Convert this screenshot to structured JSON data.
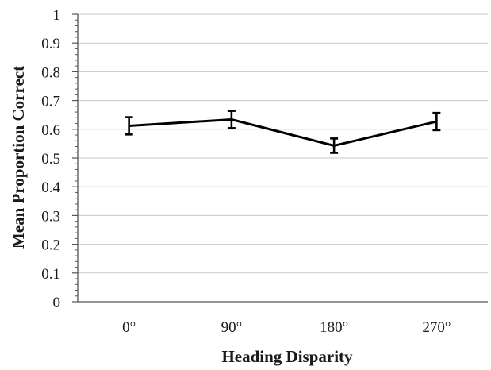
{
  "chart_data": {
    "type": "line",
    "xlabel": "Heading Disparity",
    "ylabel": "Mean Proportion Correct",
    "categories": [
      "0°",
      "90°",
      "180°",
      "270°"
    ],
    "series": [
      {
        "values": [
          0.612,
          0.634,
          0.543,
          0.627
        ],
        "error": [
          0.03,
          0.03,
          0.025,
          0.03
        ]
      }
    ],
    "ylim": [
      0,
      1
    ],
    "yticks": [
      0,
      0.1,
      0.2,
      0.3,
      0.4,
      0.5,
      0.6,
      0.7,
      0.8,
      0.9,
      1
    ],
    "ytick_labels": [
      "0",
      "0.1",
      "0.2",
      "0.3",
      "0.4",
      "0.5",
      "0.6",
      "0.7",
      "0.8",
      "0.9",
      "1"
    ],
    "grid": true,
    "colors": {
      "line": "#000000",
      "grid": "#c8c8c8",
      "axis": "#555555"
    }
  }
}
